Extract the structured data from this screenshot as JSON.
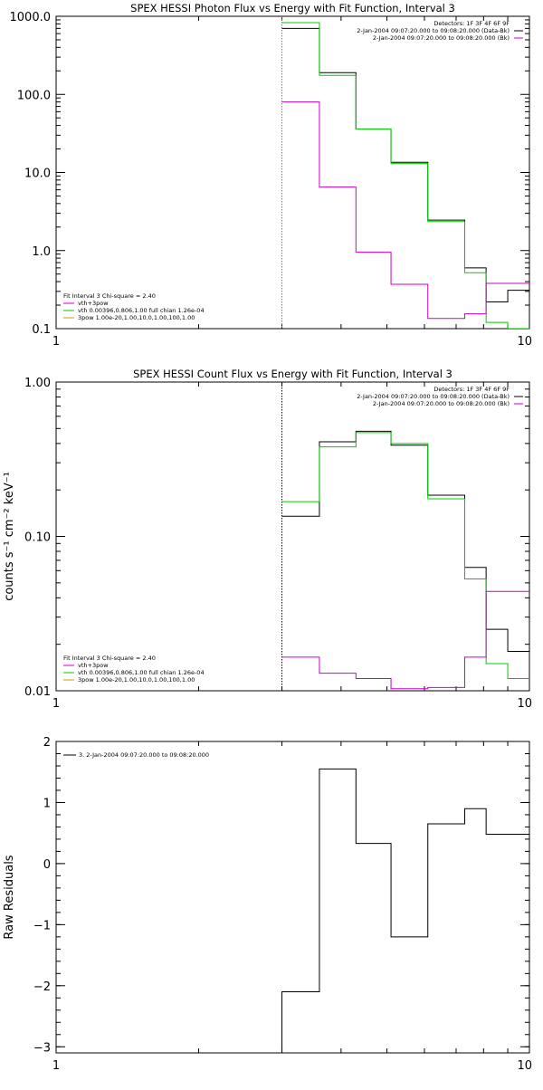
{
  "chart_data": [
    {
      "type": "line",
      "title": "SPEX HESSI Photon Flux vs Energy with Fit Function, Interval 3",
      "xlabel": "",
      "ylabel": "",
      "xscale": "log",
      "yscale": "log",
      "xlim": [
        1,
        10
      ],
      "ylim": [
        0.1,
        1000
      ],
      "xticks": [
        1,
        10
      ],
      "xtick_labels": [
        "1",
        "10"
      ],
      "yticks": [
        0.1,
        1,
        10,
        100,
        1000
      ],
      "ytick_labels": [
        "0.1",
        "1.0",
        "10.0",
        "100.0",
        "1000.0"
      ],
      "vline_x": 3.0,
      "vline_color": "#00cc00",
      "vline_style": "dotted",
      "legend_top_right": [
        {
          "text": "Detectors: 1F 3F 4F 6F 9F",
          "color": "#000000"
        },
        {
          "text": "2-Jan-2004 09:07:20.000 to 09:08:20.000 (Data-Bk)",
          "color": "#000000"
        },
        {
          "text": "2-Jan-2004 09:07:20.000 to 09:08:20.000 (Bk)",
          "color": "#cc00cc"
        }
      ],
      "legend_bottom_left": [
        {
          "text": "Fit Interval 3   Chi-square = 2.40",
          "color": "#000000"
        },
        {
          "text": "vth+3pow",
          "color": "#cc00cc"
        },
        {
          "text": "vth 0.00396,0.806,1.00  full chian 1.26e-04",
          "color": "#00cc00"
        },
        {
          "text": "3pow 1.00e-20,1.00,10.0,1.00,100,1.00",
          "color": "#cc9900"
        }
      ],
      "bin_edges": [
        3.0,
        3.6,
        4.3,
        5.1,
        6.1,
        7.3,
        8.1,
        9.0,
        10.0
      ],
      "series": [
        {
          "color": "#000000",
          "values": [
            700,
            190,
            36,
            13.5,
            2.45,
            0.6,
            0.22,
            0.31
          ]
        },
        {
          "color": "#00cc00",
          "values": [
            830,
            175,
            36,
            13.0,
            2.35,
            0.52,
            0.12,
            0.1
          ]
        },
        {
          "color": "#cc00cc",
          "values": [
            80,
            6.5,
            0.95,
            0.37,
            0.135,
            0.155,
            0.38,
            0.38
          ]
        }
      ]
    },
    {
      "type": "line",
      "title": "SPEX HESSI Count Flux vs Energy with Fit Function, Interval 3",
      "xlabel": "",
      "ylabel": "counts s⁻¹ cm⁻² keV⁻¹",
      "xscale": "log",
      "yscale": "log",
      "xlim": [
        1,
        10
      ],
      "ylim": [
        0.01,
        1.0
      ],
      "xticks": [
        1,
        10
      ],
      "xtick_labels": [
        "1",
        "10"
      ],
      "yticks": [
        0.01,
        0.1,
        1.0
      ],
      "ytick_labels": [
        "0.01",
        "0.10",
        "1.00"
      ],
      "vline_x": 3.0,
      "vline_color": "#000000",
      "vline_style": "dotted",
      "legend_top_right": [
        {
          "text": "Detectors: 1F 3F 4F 6F 9F",
          "color": "#000000"
        },
        {
          "text": "2-Jan-2004 09:07:20.000 to 09:08:20.000 (Data-Bk)",
          "color": "#000000"
        },
        {
          "text": "2-Jan-2004 09:07:20.000 to 09:08:20.000 (Bk)",
          "color": "#cc00cc"
        }
      ],
      "legend_bottom_left": [
        {
          "text": "Fit Interval 3   Chi-square = 2.40",
          "color": "#000000"
        },
        {
          "text": "vth+3pow",
          "color": "#cc00cc"
        },
        {
          "text": "vth 0.00396,0.806,1.00  full chian 1.26e-04",
          "color": "#00cc00"
        },
        {
          "text": "3pow 1.00e-20,1.00,10.0,1.00,100,1.00",
          "color": "#cc9900"
        }
      ],
      "bin_edges": [
        3.0,
        3.6,
        4.3,
        5.1,
        6.1,
        7.3,
        8.1,
        9.0,
        10.0
      ],
      "series": [
        {
          "color": "#000000",
          "values": [
            0.135,
            0.41,
            0.48,
            0.39,
            0.185,
            0.063,
            0.025,
            0.018
          ]
        },
        {
          "color": "#00cc00",
          "values": [
            0.168,
            0.38,
            0.47,
            0.4,
            0.175,
            0.053,
            0.015,
            0.012
          ]
        },
        {
          "color": "#cc00cc",
          "values": [
            0.0165,
            0.013,
            0.012,
            0.0103,
            0.0105,
            0.0165,
            0.044,
            0.044
          ]
        }
      ]
    },
    {
      "type": "line",
      "title": "",
      "xlabel": "",
      "ylabel": "Raw Residuals",
      "xscale": "log",
      "yscale": "linear",
      "xlim": [
        1,
        10
      ],
      "ylim": [
        -3.1,
        2
      ],
      "xticks": [
        1,
        10
      ],
      "xtick_labels": [
        "1",
        "10"
      ],
      "yticks": [
        -3,
        -2,
        -1,
        0,
        1,
        2
      ],
      "ytick_labels": [
        "−3",
        "−2",
        "−1",
        "0",
        "1",
        "2"
      ],
      "legend_top_left": [
        {
          "text": "3.  2-Jan-2004 09:07:20.000 to 09:08:20.000",
          "color": "#000000"
        }
      ],
      "bin_edges": [
        3.0,
        3.6,
        4.3,
        5.1,
        6.1,
        7.3,
        8.1,
        9.0,
        10.0
      ],
      "series": [
        {
          "color": "#000000",
          "values": [
            -2.1,
            1.55,
            0.33,
            -1.2,
            0.65,
            0.9,
            0.48,
            0.48
          ],
          "start_value": -3.1
        }
      ]
    }
  ]
}
